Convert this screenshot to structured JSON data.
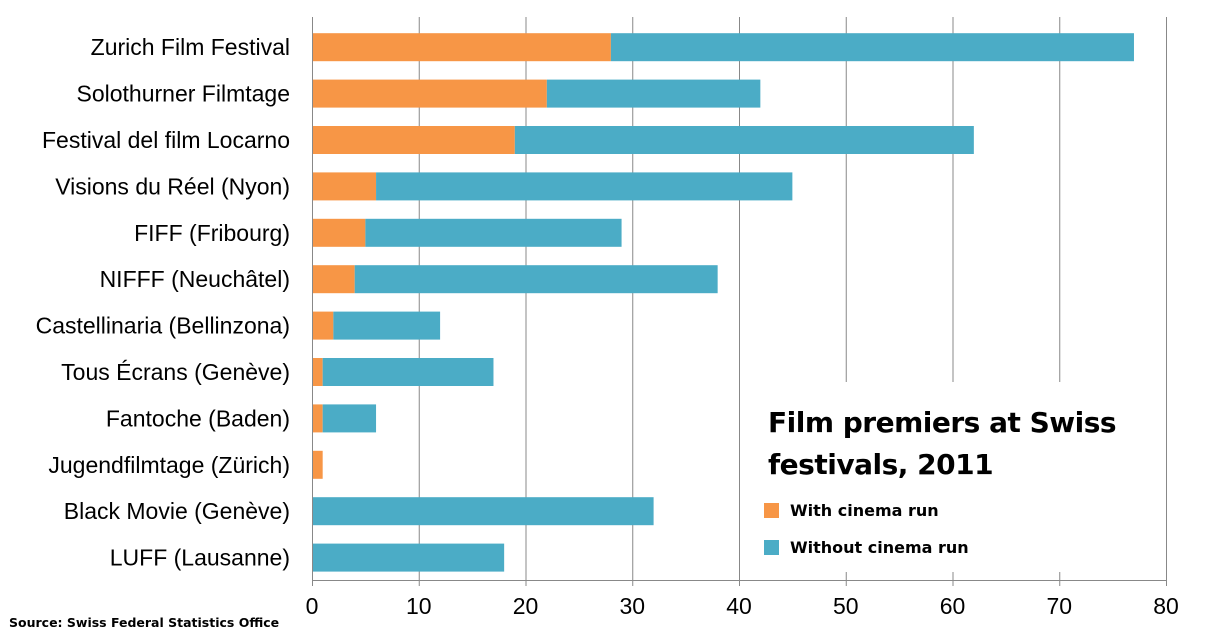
{
  "chart_data": {
    "type": "bar",
    "orientation": "horizontal",
    "stacked": true,
    "title": "Film premiers at Swiss festivals, 2011",
    "xlabel": "",
    "ylabel": "",
    "xlim": [
      0,
      80
    ],
    "x_ticks": [
      "0",
      "10",
      "20",
      "30",
      "40",
      "50",
      "60",
      "70",
      "80"
    ],
    "grid": "vertical",
    "legend_position": "bottom-right",
    "categories": [
      "Zurich Film Festival",
      "Solothurner Filmtage",
      "Festival del film Locarno",
      "Visions du Réel (Nyon)",
      "FIFF (Fribourg)",
      "NIFFF (Neuchâtel)",
      "Castellinaria (Bellinzona)",
      "Tous Écrans (Genève)",
      "Fantoche (Baden)",
      "Jugendfilmtage (Zürich)",
      "Black Movie (Genève)",
      "LUFF (Lausanne)"
    ],
    "series": [
      {
        "name": "With cinema run",
        "color": "#F79646",
        "values": [
          28,
          22,
          19,
          6,
          5,
          4,
          2,
          1,
          1,
          1,
          0,
          0
        ]
      },
      {
        "name": "Without cinema run",
        "color": "#4BACC6",
        "values": [
          49,
          20,
          43,
          39,
          24,
          34,
          10,
          16,
          5,
          0,
          32,
          18
        ]
      }
    ]
  },
  "title_lines": [
    "Film premiers at Swiss",
    "festivals, 2011"
  ],
  "legend": {
    "with_label": "With cinema run",
    "without_label": "Without cinema run"
  },
  "source": "Source: Swiss Federal Statistics Office"
}
